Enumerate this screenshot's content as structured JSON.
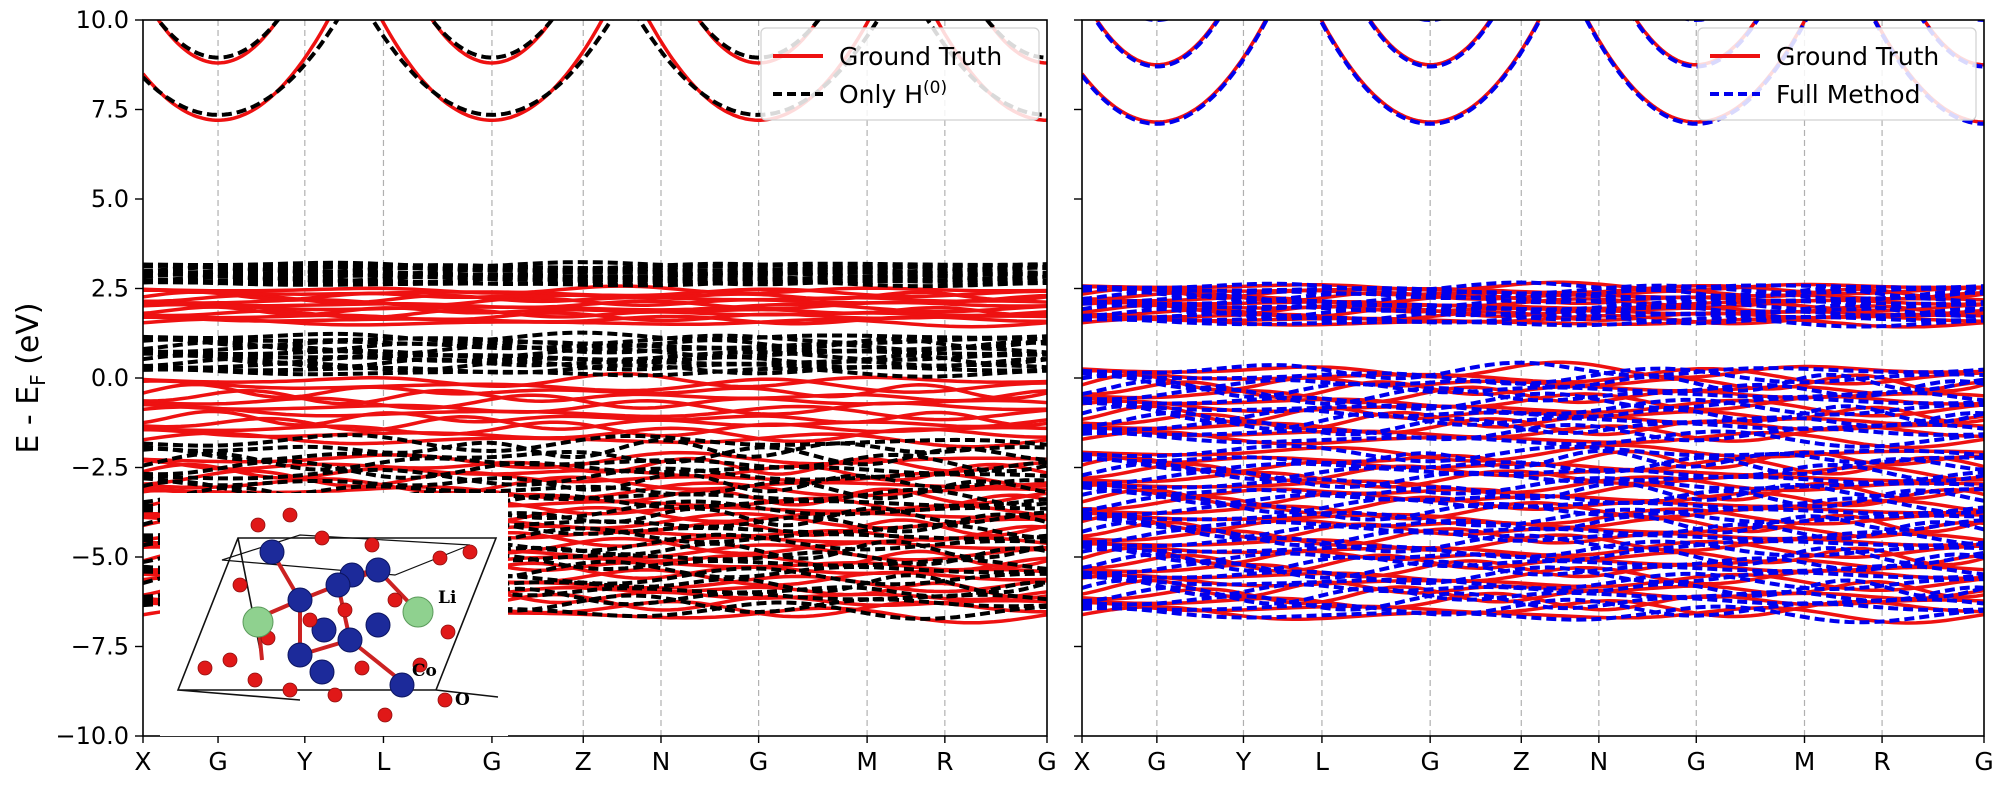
{
  "chart_data": [
    {
      "type": "line",
      "panel": "left",
      "ylabel": "E - E",
      "ylabel_sub": "F",
      "ylabel_unit": " (eV)",
      "ylim": [
        -10.0,
        10.0
      ],
      "yticks": [
        -10.0,
        -7.5,
        -5.0,
        -2.5,
        0.0,
        2.5,
        5.0,
        7.5,
        10.0
      ],
      "ytick_labels": [
        "−10.0",
        "−7.5",
        "−5.0",
        "−2.5",
        "0.0",
        "2.5",
        "5.0",
        "7.5",
        "10.0"
      ],
      "xlim": [
        0,
        1
      ],
      "kpoints": [
        {
          "label": "X",
          "x": 0.0
        },
        {
          "label": "G",
          "x": 0.083
        },
        {
          "label": "Y",
          "x": 0.179
        },
        {
          "label": "L",
          "x": 0.266
        },
        {
          "label": "G",
          "x": 0.386
        },
        {
          "label": "Z",
          "x": 0.487
        },
        {
          "label": "N",
          "x": 0.573
        },
        {
          "label": "G",
          "x": 0.681
        },
        {
          "label": "M",
          "x": 0.801
        },
        {
          "label": "R",
          "x": 0.887
        },
        {
          "label": "G",
          "x": 1.0
        }
      ],
      "grid": "vertical dashed at k-points",
      "legend": {
        "position": "top-right",
        "entries": [
          {
            "label": "Ground Truth",
            "sup": "",
            "color": "#ee1111",
            "style": "solid"
          },
          {
            "label": "Only H",
            "sup": "(0)",
            "color": "#000000",
            "style": "dashed"
          }
        ]
      },
      "series": [
        {
          "name": "Ground Truth",
          "color": "#ee1111",
          "style": "solid",
          "bands": {
            "conduction_upper_min": 7.2,
            "conduction_upper_edge": 8.5,
            "block1": [
              1.5,
              2.5
            ],
            "block2": [
              -1.8,
              0.0
            ],
            "block3": [
              -6.7,
              -2.2
            ]
          }
        },
        {
          "name": "Only H(0)",
          "color": "#000000",
          "style": "dashed",
          "bands": {
            "conduction_upper_min": 7.35,
            "conduction_upper_edge": 8.4,
            "block1": [
              2.6,
              3.2
            ],
            "block2": [
              0.1,
              1.2
            ],
            "block3": [
              -6.6,
              -1.7
            ]
          }
        }
      ],
      "inset": {
        "type": "crystal structure",
        "atom_labels": [
          {
            "text": "Li",
            "color": "#8fd18f"
          },
          {
            "text": "Co",
            "color": "#1c2a9a"
          },
          {
            "text": "O",
            "color": "#e01818"
          }
        ]
      }
    },
    {
      "type": "line",
      "panel": "right",
      "ylim": [
        -10.0,
        10.0
      ],
      "yticks": [
        -10.0,
        -7.5,
        -5.0,
        -2.5,
        0.0,
        2.5,
        5.0,
        7.5,
        10.0
      ],
      "xlim": [
        0,
        1
      ],
      "kpoints": [
        {
          "label": "X",
          "x": 0.0
        },
        {
          "label": "G",
          "x": 0.083
        },
        {
          "label": "Y",
          "x": 0.179
        },
        {
          "label": "L",
          "x": 0.266
        },
        {
          "label": "G",
          "x": 0.386
        },
        {
          "label": "Z",
          "x": 0.487
        },
        {
          "label": "N",
          "x": 0.573
        },
        {
          "label": "G",
          "x": 0.681
        },
        {
          "label": "M",
          "x": 0.801
        },
        {
          "label": "R",
          "x": 0.887
        },
        {
          "label": "G",
          "x": 1.0
        }
      ],
      "grid": "vertical dashed at k-points",
      "legend": {
        "position": "top-right",
        "entries": [
          {
            "label": "Ground Truth",
            "sup": "",
            "color": "#ee1111",
            "style": "solid"
          },
          {
            "label": "Full Method",
            "sup": "",
            "color": "#0000ee",
            "style": "dashed"
          }
        ]
      },
      "series": [
        {
          "name": "Ground Truth",
          "color": "#ee1111",
          "style": "solid",
          "bands": {
            "conduction_upper_min": 7.15,
            "conduction_upper_edge": 8.5,
            "block1": [
              1.5,
              2.6
            ],
            "block2": [
              -1.8,
              0.3
            ],
            "block3": [
              -6.7,
              -2.0
            ]
          }
        },
        {
          "name": "Full Method",
          "color": "#0000ee",
          "style": "dashed",
          "bands": {
            "conduction_upper_min": 7.1,
            "conduction_upper_edge": 8.45,
            "block1": [
              1.5,
              2.6
            ],
            "block2": [
              -1.8,
              0.3
            ],
            "block3": [
              -6.7,
              -2.0
            ]
          }
        }
      ]
    }
  ]
}
